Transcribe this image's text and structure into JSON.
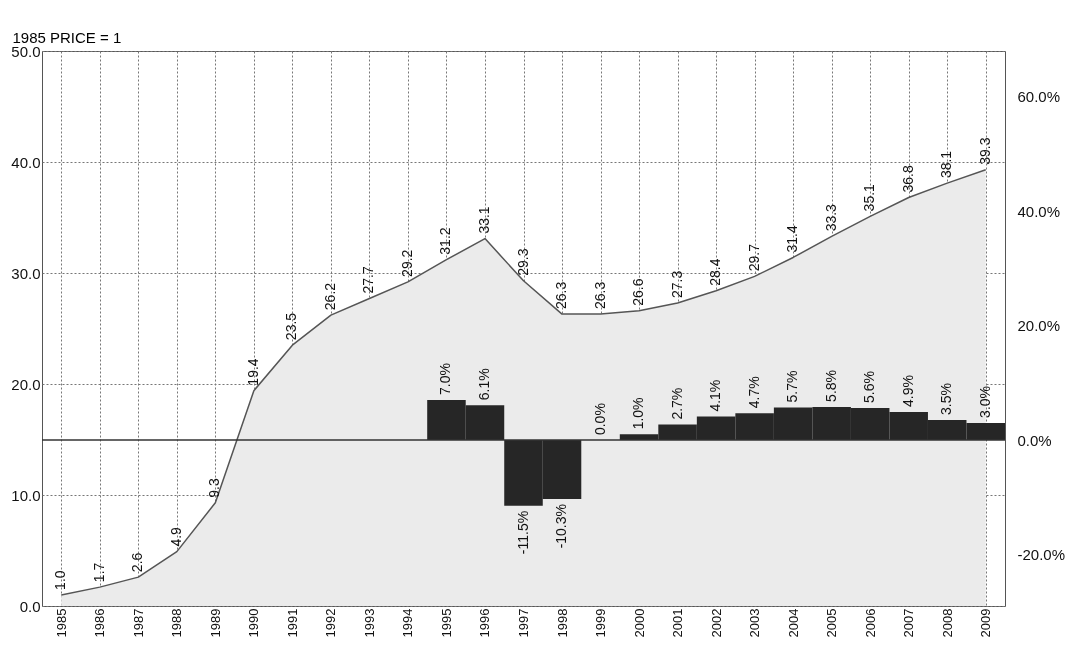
{
  "chart_data": {
    "type": "area",
    "ylabel": "1985 PRICE = 1",
    "categories": [
      "1985",
      "1986",
      "1987",
      "1988",
      "1989",
      "1990",
      "1991",
      "1992",
      "1993",
      "1994",
      "1995",
      "1996",
      "1997",
      "1998",
      "1999",
      "2000",
      "2001",
      "2002",
      "2003",
      "2004",
      "2005",
      "2006",
      "2007",
      "2008",
      "2009"
    ],
    "series": [
      {
        "color": "#ebebeb",
        "values": [
          1.0,
          1.7,
          2.6,
          4.9,
          9.3,
          19.4,
          23.5,
          26.2,
          27.7,
          29.2,
          31.2,
          33.1,
          29.3,
          26.3,
          26.3,
          26.6,
          27.3,
          28.4,
          29.7,
          31.4,
          33.3,
          35.1,
          36.8,
          38.1,
          39.3
        ],
        "value_labels": [
          "1.0",
          "1.7",
          "2.6",
          "4.9",
          "9.3",
          "19.4",
          "23.5",
          "26.2",
          "27.7",
          "29.2",
          "31.2",
          "33.1",
          "29.3",
          "26.3",
          "26.3",
          "26.6",
          "27.3",
          "28.4",
          "29.7",
          "31.4",
          "33.3",
          "35.1",
          "36.8",
          "38.1",
          "39.3"
        ]
      },
      {
        "type": "bar",
        "axis": "y2",
        "color": "#262626",
        "values": [
          null,
          null,
          null,
          null,
          null,
          null,
          null,
          null,
          null,
          null,
          7.0,
          6.1,
          -11.5,
          -10.3,
          0.0,
          1.0,
          2.7,
          4.1,
          4.7,
          5.7,
          5.8,
          5.6,
          4.9,
          3.5,
          3.0
        ],
        "value_labels": [
          null,
          null,
          null,
          null,
          null,
          null,
          null,
          null,
          null,
          null,
          "7.0%",
          "6.1%",
          "-11.5%",
          "-10.3%",
          "0.0%",
          "1.0%",
          "2.7%",
          "4.1%",
          "4.7%",
          "5.7%",
          "5.8%",
          "5.6%",
          "4.9%",
          "3.5%",
          "3.0%"
        ]
      }
    ],
    "ylim": [
      0,
      50
    ],
    "yticks": [
      {
        "value": 0,
        "label": "0.0"
      },
      {
        "value": 10,
        "label": "10.0"
      },
      {
        "value": 20,
        "label": "20.0"
      },
      {
        "value": 30,
        "label": "30.0"
      },
      {
        "value": 40,
        "label": "40.0"
      },
      {
        "value": 50,
        "label": "50.0"
      }
    ],
    "y2lim": [
      -29,
      68
    ],
    "y2ticks": [
      {
        "value": -20,
        "label": "-20.0%"
      },
      {
        "value": 0,
        "label": "0.0%"
      },
      {
        "value": 20,
        "label": "20.0%"
      },
      {
        "value": 40,
        "label": "40.0%"
      },
      {
        "value": 60,
        "label": "60.0%"
      }
    ],
    "ref_lines": [
      {
        "axis": "y2",
        "value": 0,
        "color": "#333333"
      }
    ],
    "grid": true
  }
}
